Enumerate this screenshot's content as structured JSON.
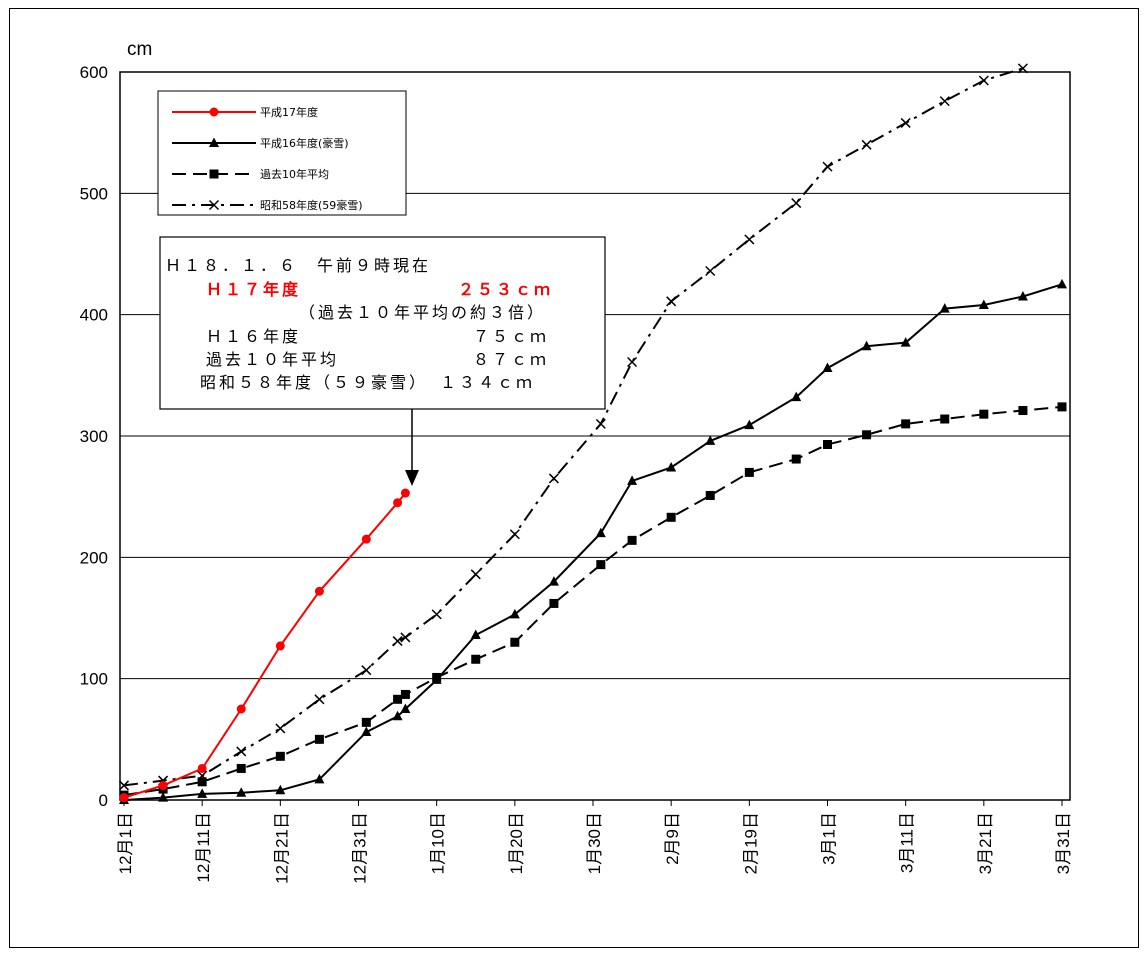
{
  "chart_data": {
    "type": "line",
    "ylabel": "cm",
    "ylim": [
      0,
      600
    ],
    "yticks": [
      0,
      100,
      200,
      300,
      400,
      500,
      600
    ],
    "x_range_days": [
      0,
      120
    ],
    "xticks": [
      {
        "day": 0,
        "label": "12月1日"
      },
      {
        "day": 10,
        "label": "12月11日"
      },
      {
        "day": 20,
        "label": "12月21日"
      },
      {
        "day": 30,
        "label": "12月31日"
      },
      {
        "day": 40,
        "label": "1月10日"
      },
      {
        "day": 50,
        "label": "1月20日"
      },
      {
        "day": 60,
        "label": "1月30日"
      },
      {
        "day": 70,
        "label": "2月9日"
      },
      {
        "day": 80,
        "label": "2月19日"
      },
      {
        "day": 90,
        "label": "3月1日"
      },
      {
        "day": 100,
        "label": "3月11日"
      },
      {
        "day": 110,
        "label": "3月21日"
      },
      {
        "day": 120,
        "label": "3月31日"
      }
    ],
    "grid": true,
    "legend_position": "top-left",
    "series": [
      {
        "name": "平成17年度",
        "color": "#ff0000",
        "marker": "circle",
        "dash": "solid",
        "points": [
          [
            0,
            2
          ],
          [
            5,
            12
          ],
          [
            10,
            26
          ],
          [
            15,
            75
          ],
          [
            20,
            127
          ],
          [
            25,
            172
          ],
          [
            31,
            215
          ],
          [
            35,
            245
          ],
          [
            36,
            253
          ]
        ]
      },
      {
        "name": "平成16年度(豪雪)",
        "color": "#000000",
        "marker": "triangle",
        "dash": "solid",
        "points": [
          [
            0,
            0
          ],
          [
            5,
            2
          ],
          [
            10,
            5
          ],
          [
            15,
            6
          ],
          [
            20,
            8
          ],
          [
            25,
            17
          ],
          [
            31,
            56
          ],
          [
            35,
            69
          ],
          [
            36,
            75
          ],
          [
            40,
            99
          ],
          [
            45,
            136
          ],
          [
            50,
            153
          ],
          [
            55,
            180
          ],
          [
            61,
            220
          ],
          [
            65,
            263
          ],
          [
            70,
            274
          ],
          [
            75,
            296
          ],
          [
            80,
            309
          ],
          [
            86,
            332
          ],
          [
            90,
            356
          ],
          [
            95,
            374
          ],
          [
            100,
            377
          ],
          [
            105,
            405
          ],
          [
            110,
            408
          ],
          [
            115,
            415
          ],
          [
            120,
            425
          ]
        ]
      },
      {
        "name": "過去10年平均",
        "color": "#000000",
        "marker": "square",
        "dash": "dashed",
        "points": [
          [
            0,
            4
          ],
          [
            5,
            9
          ],
          [
            10,
            15
          ],
          [
            15,
            26
          ],
          [
            20,
            36
          ],
          [
            25,
            50
          ],
          [
            31,
            64
          ],
          [
            35,
            83
          ],
          [
            36,
            87
          ],
          [
            40,
            101
          ],
          [
            45,
            116
          ],
          [
            50,
            130
          ],
          [
            55,
            162
          ],
          [
            61,
            194
          ],
          [
            65,
            214
          ],
          [
            70,
            233
          ],
          [
            75,
            251
          ],
          [
            80,
            270
          ],
          [
            86,
            281
          ],
          [
            90,
            293
          ],
          [
            95,
            301
          ],
          [
            100,
            310
          ],
          [
            105,
            314
          ],
          [
            110,
            318
          ],
          [
            115,
            321
          ],
          [
            120,
            324
          ]
        ]
      },
      {
        "name": "昭和58年度(59豪雪)",
        "color": "#000000",
        "marker": "x",
        "dash": "dashdot",
        "points": [
          [
            0,
            12
          ],
          [
            5,
            16
          ],
          [
            10,
            20
          ],
          [
            15,
            40
          ],
          [
            20,
            59
          ],
          [
            25,
            83
          ],
          [
            31,
            107
          ],
          [
            35,
            131
          ],
          [
            36,
            134
          ],
          [
            40,
            153
          ],
          [
            45,
            186
          ],
          [
            50,
            219
          ],
          [
            55,
            265
          ],
          [
            61,
            310
          ],
          [
            65,
            361
          ],
          [
            70,
            411
          ],
          [
            75,
            436
          ],
          [
            80,
            462
          ],
          [
            86,
            492
          ],
          [
            90,
            522
          ],
          [
            95,
            540
          ],
          [
            100,
            558
          ],
          [
            105,
            576
          ],
          [
            110,
            593
          ],
          [
            115,
            603
          ]
        ]
      }
    ],
    "annotation": {
      "line1": "Ｈ１８．１．６　午前９時現在",
      "red_label": "Ｈ１７年度",
      "red_value": "２５３ｃｍ",
      "note": "（過去１０年平均の約３倍）",
      "rows": [
        {
          "label": "Ｈ１６年度",
          "value": "７５ｃｍ"
        },
        {
          "label": "過去１０年平均",
          "value": "８７ｃｍ"
        },
        {
          "label": "昭和５８年度（５９豪雪）",
          "value": "１３４ｃｍ"
        }
      ]
    }
  }
}
